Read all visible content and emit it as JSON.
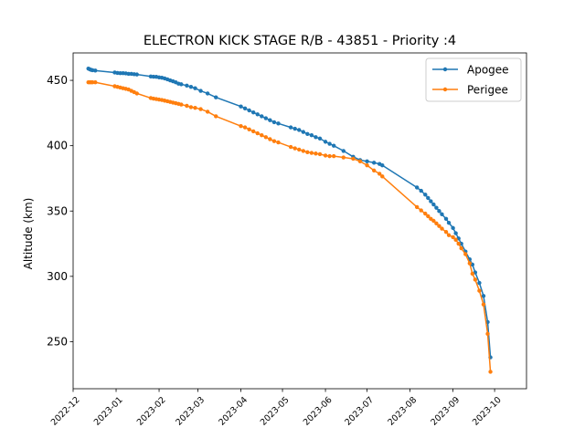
{
  "chart_data": {
    "type": "line",
    "title": "ELECTRON KICK STAGE R/B - 43851 - Priority :4",
    "xlabel": "",
    "ylabel": "Altitude (km)",
    "xlim": [
      "2022-12-01",
      "2023-10-24"
    ],
    "ylim": [
      214,
      471
    ],
    "x_ticks": [
      "2022-12",
      "2023-01",
      "2023-02",
      "2023-03",
      "2023-04",
      "2023-05",
      "2023-06",
      "2023-07",
      "2023-08",
      "2023-09",
      "2023-10"
    ],
    "y_ticks": [
      250,
      300,
      350,
      400,
      450
    ],
    "grid": false,
    "legend_position": "top-right",
    "colors": {
      "Apogee": "#1f77b4",
      "Perigee": "#ff7f0e"
    },
    "series": [
      {
        "name": "Apogee",
        "color": "#1f77b4",
        "points": [
          [
            "2022-12-12",
            459
          ],
          [
            "2022-12-13",
            458.5
          ],
          [
            "2022-12-14",
            458
          ],
          [
            "2022-12-15",
            457.8
          ],
          [
            "2022-12-17",
            457.5
          ],
          [
            "2022-12-31",
            456
          ],
          [
            "2023-01-02",
            455.7
          ],
          [
            "2023-01-04",
            455.5
          ],
          [
            "2023-01-06",
            455.5
          ],
          [
            "2023-01-08",
            455.3
          ],
          [
            "2023-01-10",
            455
          ],
          [
            "2023-01-12",
            455
          ],
          [
            "2023-01-14",
            454.7
          ],
          [
            "2023-01-16",
            454.5
          ],
          [
            "2023-01-26",
            453
          ],
          [
            "2023-01-28",
            452.8
          ],
          [
            "2023-01-30",
            452.7
          ],
          [
            "2023-02-01",
            452.3
          ],
          [
            "2023-02-03",
            452
          ],
          [
            "2023-02-05",
            451.5
          ],
          [
            "2023-02-07",
            450.8
          ],
          [
            "2023-02-09",
            450
          ],
          [
            "2023-02-11",
            449.3
          ],
          [
            "2023-02-13",
            448.5
          ],
          [
            "2023-02-15",
            447.5
          ],
          [
            "2023-02-17",
            447
          ],
          [
            "2023-02-21",
            446
          ],
          [
            "2023-02-24",
            445
          ],
          [
            "2023-02-27",
            444
          ],
          [
            "2023-03-03",
            442
          ],
          [
            "2023-03-08",
            440
          ],
          [
            "2023-03-14",
            437
          ],
          [
            "2023-04-01",
            430
          ],
          [
            "2023-04-04",
            428.5
          ],
          [
            "2023-04-07",
            427
          ],
          [
            "2023-04-10",
            425.5
          ],
          [
            "2023-04-13",
            424
          ],
          [
            "2023-04-16",
            422.5
          ],
          [
            "2023-04-19",
            421
          ],
          [
            "2023-04-22",
            419.5
          ],
          [
            "2023-04-25",
            418
          ],
          [
            "2023-04-28",
            417
          ],
          [
            "2023-05-07",
            414
          ],
          [
            "2023-05-10",
            413
          ],
          [
            "2023-05-13",
            412
          ],
          [
            "2023-05-16",
            410.5
          ],
          [
            "2023-05-19",
            409
          ],
          [
            "2023-05-22",
            408
          ],
          [
            "2023-05-25",
            406.5
          ],
          [
            "2023-05-28",
            405.5
          ],
          [
            "2023-06-01",
            403
          ],
          [
            "2023-06-04",
            401.5
          ],
          [
            "2023-06-07",
            400
          ],
          [
            "2023-06-14",
            396
          ],
          [
            "2023-06-21",
            391.5
          ],
          [
            "2023-06-26",
            389
          ],
          [
            "2023-07-01",
            388
          ],
          [
            "2023-07-06",
            387
          ],
          [
            "2023-07-10",
            386
          ],
          [
            "2023-07-12",
            385
          ],
          [
            "2023-08-06",
            368
          ],
          [
            "2023-08-09",
            365.5
          ],
          [
            "2023-08-12",
            362.5
          ],
          [
            "2023-08-14",
            360
          ],
          [
            "2023-08-16",
            357.5
          ],
          [
            "2023-08-18",
            355
          ],
          [
            "2023-08-20",
            352.5
          ],
          [
            "2023-08-22",
            350
          ],
          [
            "2023-08-24",
            347.5
          ],
          [
            "2023-08-27",
            344
          ],
          [
            "2023-08-29",
            341
          ],
          [
            "2023-09-01",
            337
          ],
          [
            "2023-09-03",
            333
          ],
          [
            "2023-09-05",
            329
          ],
          [
            "2023-09-07",
            325
          ],
          [
            "2023-09-10",
            319
          ],
          [
            "2023-09-13",
            313
          ],
          [
            "2023-09-15",
            309
          ],
          [
            "2023-09-17",
            303
          ],
          [
            "2023-09-20",
            295
          ],
          [
            "2023-09-23",
            285
          ],
          [
            "2023-09-26",
            265
          ],
          [
            "2023-09-28",
            238
          ]
        ]
      },
      {
        "name": "Perigee",
        "color": "#ff7f0e",
        "points": [
          [
            "2022-12-12",
            448.5
          ],
          [
            "2022-12-13",
            448.5
          ],
          [
            "2022-12-14",
            448.5
          ],
          [
            "2022-12-15",
            448.5
          ],
          [
            "2022-12-17",
            448.5
          ],
          [
            "2022-12-31",
            445.5
          ],
          [
            "2023-01-02",
            445
          ],
          [
            "2023-01-04",
            444.5
          ],
          [
            "2023-01-06",
            444
          ],
          [
            "2023-01-08",
            443.5
          ],
          [
            "2023-01-10",
            443
          ],
          [
            "2023-01-12",
            442
          ],
          [
            "2023-01-14",
            441
          ],
          [
            "2023-01-16",
            440
          ],
          [
            "2023-01-26",
            436.5
          ],
          [
            "2023-01-28",
            436
          ],
          [
            "2023-01-30",
            435.7
          ],
          [
            "2023-02-01",
            435.3
          ],
          [
            "2023-02-03",
            435
          ],
          [
            "2023-02-05",
            434.5
          ],
          [
            "2023-02-07",
            434
          ],
          [
            "2023-02-09",
            433.5
          ],
          [
            "2023-02-11",
            433
          ],
          [
            "2023-02-13",
            432.5
          ],
          [
            "2023-02-15",
            432
          ],
          [
            "2023-02-17",
            431.5
          ],
          [
            "2023-02-21",
            430.5
          ],
          [
            "2023-02-24",
            429.5
          ],
          [
            "2023-02-27",
            429
          ],
          [
            "2023-03-03",
            428
          ],
          [
            "2023-03-08",
            426
          ],
          [
            "2023-03-14",
            422.5
          ],
          [
            "2023-04-01",
            415
          ],
          [
            "2023-04-04",
            414
          ],
          [
            "2023-04-07",
            412.5
          ],
          [
            "2023-04-10",
            411
          ],
          [
            "2023-04-13",
            409.5
          ],
          [
            "2023-04-16",
            408
          ],
          [
            "2023-04-19",
            406.5
          ],
          [
            "2023-04-22",
            405
          ],
          [
            "2023-04-25",
            403.5
          ],
          [
            "2023-04-28",
            402.5
          ],
          [
            "2023-05-07",
            399
          ],
          [
            "2023-05-10",
            398
          ],
          [
            "2023-05-13",
            397
          ],
          [
            "2023-05-16",
            396
          ],
          [
            "2023-05-19",
            395
          ],
          [
            "2023-05-22",
            394.5
          ],
          [
            "2023-05-25",
            394
          ],
          [
            "2023-05-28",
            393.5
          ],
          [
            "2023-06-01",
            392.5
          ],
          [
            "2023-06-04",
            392
          ],
          [
            "2023-06-07",
            392
          ],
          [
            "2023-06-14",
            391
          ],
          [
            "2023-06-21",
            390
          ],
          [
            "2023-06-26",
            388
          ],
          [
            "2023-07-01",
            385
          ],
          [
            "2023-07-06",
            381
          ],
          [
            "2023-07-10",
            378.5
          ],
          [
            "2023-07-12",
            376.5
          ],
          [
            "2023-08-06",
            353
          ],
          [
            "2023-08-09",
            350.5
          ],
          [
            "2023-08-12",
            348
          ],
          [
            "2023-08-14",
            346
          ],
          [
            "2023-08-16",
            344
          ],
          [
            "2023-08-18",
            342.5
          ],
          [
            "2023-08-20",
            340.5
          ],
          [
            "2023-08-22",
            338.5
          ],
          [
            "2023-08-24",
            336.5
          ],
          [
            "2023-08-27",
            334
          ],
          [
            "2023-08-29",
            331.5
          ],
          [
            "2023-09-01",
            330
          ],
          [
            "2023-09-03",
            328
          ],
          [
            "2023-09-05",
            325
          ],
          [
            "2023-09-07",
            321.5
          ],
          [
            "2023-09-10",
            317
          ],
          [
            "2023-09-13",
            310
          ],
          [
            "2023-09-15",
            302
          ],
          [
            "2023-09-17",
            297.5
          ],
          [
            "2023-09-20",
            289
          ],
          [
            "2023-09-23",
            278.5
          ],
          [
            "2023-09-26",
            256
          ],
          [
            "2023-09-28",
            227
          ]
        ]
      }
    ]
  }
}
